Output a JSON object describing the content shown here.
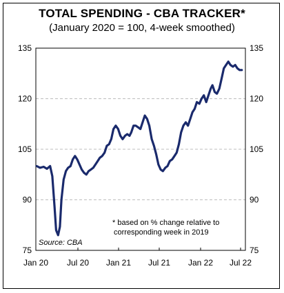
{
  "chart_data": {
    "type": "line",
    "title": "TOTAL SPENDING - CBA TRACKER*",
    "subtitle": "(January 2020 = 100, 4-week smoothed)",
    "xlabel": "",
    "ylabel": "",
    "ylim": [
      75,
      135
    ],
    "yticks": [
      "75",
      "90",
      "105",
      "120",
      "135"
    ],
    "xtick_labels": [
      "Jan 20",
      "Jul 20",
      "Jan 21",
      "Jul 21",
      "Jan 22",
      "Jul 22"
    ],
    "xlim": [
      "2020-01-01",
      "2022-07-31"
    ],
    "grid": true,
    "footnote": "* based on % change relative to corresponding week in 2019",
    "footnote_lines": [
      "*  based on % change relative to",
      "corresponding week in 2019"
    ],
    "source": "Source: CBA",
    "line_color": "#1a2a6c",
    "series": [
      {
        "x": [
          "2020-01-05",
          "2020-01-20",
          "2020-02-05",
          "2020-02-20",
          "2020-03-05",
          "2020-03-15",
          "2020-03-25",
          "2020-04-01",
          "2020-04-10",
          "2020-04-18",
          "2020-04-25",
          "2020-05-05",
          "2020-05-15",
          "2020-05-25",
          "2020-06-05",
          "2020-06-15",
          "2020-06-25",
          "2020-07-05",
          "2020-07-15",
          "2020-07-25",
          "2020-08-05",
          "2020-08-15",
          "2020-08-25",
          "2020-09-05",
          "2020-09-15",
          "2020-09-25",
          "2020-10-05",
          "2020-10-15",
          "2020-10-25",
          "2020-11-05",
          "2020-11-15",
          "2020-11-25",
          "2020-12-05",
          "2020-12-15",
          "2020-12-25",
          "2021-01-05",
          "2021-01-15",
          "2021-01-25",
          "2021-02-05",
          "2021-02-15",
          "2021-02-25",
          "2021-03-05",
          "2021-03-15",
          "2021-03-25",
          "2021-04-05",
          "2021-04-15",
          "2021-04-25",
          "2021-05-05",
          "2021-05-15",
          "2021-05-25",
          "2021-06-05",
          "2021-06-15",
          "2021-06-25",
          "2021-07-05",
          "2021-07-15",
          "2021-07-25",
          "2021-08-05",
          "2021-08-15",
          "2021-08-25",
          "2021-09-05",
          "2021-09-15",
          "2021-09-25",
          "2021-10-05",
          "2021-10-15",
          "2021-10-25",
          "2021-11-05",
          "2021-11-15",
          "2021-11-25",
          "2021-12-05",
          "2021-12-15",
          "2021-12-25",
          "2022-01-05",
          "2022-01-15",
          "2022-01-25",
          "2022-02-05",
          "2022-02-15",
          "2022-02-25",
          "2022-03-05",
          "2022-03-15",
          "2022-03-25",
          "2022-04-05",
          "2022-04-15",
          "2022-04-25",
          "2022-05-05",
          "2022-05-15",
          "2022-05-25",
          "2022-06-05",
          "2022-06-15",
          "2022-06-25",
          "2022-07-05",
          "2022-07-15"
        ],
        "values": [
          100,
          99.5,
          99.8,
          99.2,
          100,
          97,
          88,
          81,
          79.5,
          82,
          90,
          96,
          98.5,
          99.5,
          100,
          102,
          103,
          102,
          100.5,
          99,
          98,
          97.5,
          98.5,
          99,
          99.5,
          100.5,
          101.5,
          102.5,
          103,
          104,
          106,
          106.5,
          108,
          111,
          112,
          111,
          109,
          108,
          109,
          109.5,
          109,
          110,
          112,
          112,
          111.5,
          111,
          113,
          115,
          114,
          112,
          108,
          106,
          103.5,
          100.5,
          99,
          98.5,
          99.5,
          100,
          101.5,
          102,
          103,
          104,
          106.5,
          110,
          112,
          113,
          112,
          114,
          116,
          117,
          119,
          118.5,
          120,
          121,
          119,
          121,
          123,
          124,
          122,
          121.5,
          123,
          126,
          129,
          130,
          131,
          130,
          129.5,
          130,
          129,
          128.5,
          128.5
        ]
      }
    ]
  }
}
